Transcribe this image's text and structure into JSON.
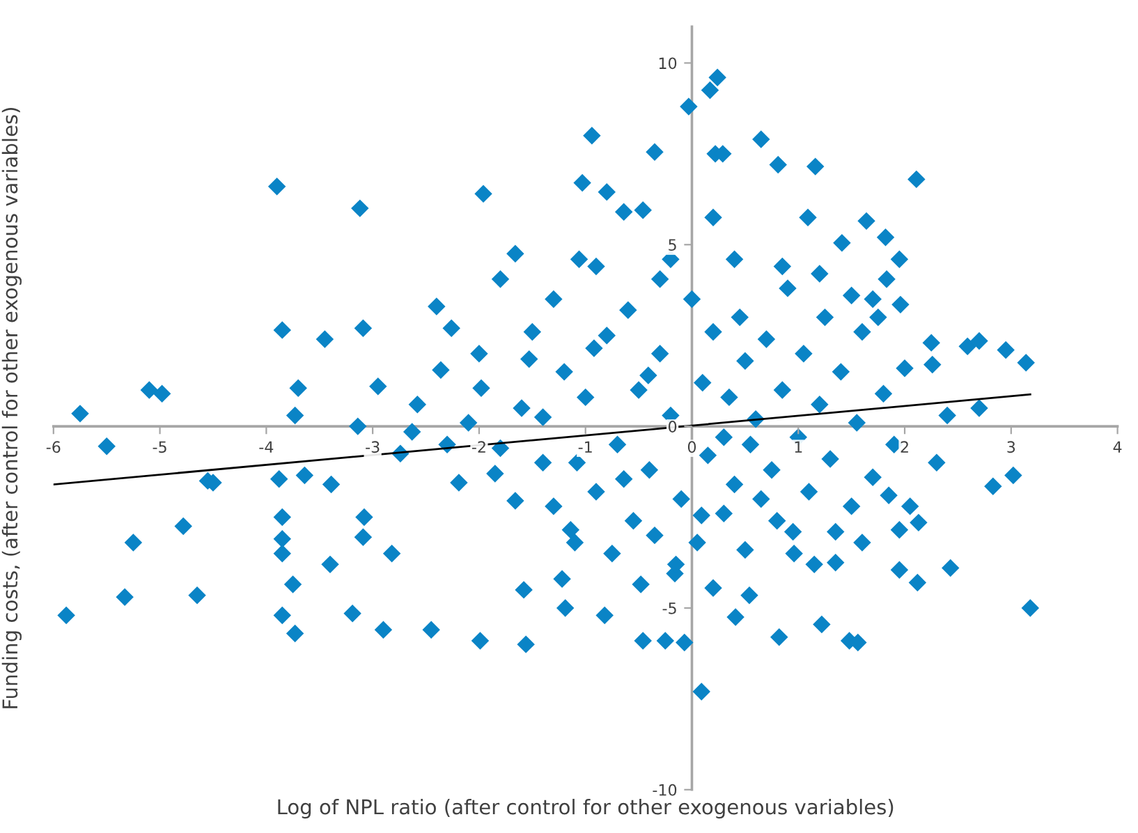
{
  "chart_data": {
    "type": "scatter",
    "xlabel": "Log of NPL ratio (after control for other exogenous variables)",
    "ylabel": "Funding costs, (after control for other exogenous variables)",
    "xlim": [
      -6,
      4
    ],
    "ylim": [
      -10,
      11
    ],
    "xticks": [
      -6,
      -5,
      -4,
      -3,
      -2,
      -1,
      0,
      1,
      2,
      3,
      4
    ],
    "yticks": [
      -10,
      -5,
      0,
      5,
      10
    ],
    "grid": false,
    "legend": false,
    "marker": "diamond",
    "series": [
      {
        "color": "#0a84c6",
        "x": [
          -5.75,
          -5.5,
          -5.1,
          -4.98,
          -5.88,
          -5.33,
          -5.25,
          -4.78,
          -4.65,
          -4.55,
          -4.5,
          -3.9,
          -3.85,
          -3.88,
          -3.85,
          -3.85,
          -3.85,
          -3.75,
          -3.85,
          -3.73,
          -3.73,
          -3.7,
          -3.64,
          -3.45,
          -3.39,
          -3.4,
          -3.12,
          -3.09,
          -3.08,
          -3.19,
          -3.14,
          -3.09,
          -2.95,
          -2.9,
          -2.82,
          -2.74,
          -2.63,
          -2.58,
          -2.45,
          -2.4,
          -2.36,
          -2.26,
          -2.19,
          -1.99,
          -1.96,
          -1.98,
          -1.85,
          -1.8,
          -1.66,
          -1.58,
          -1.56,
          -1.53,
          -1.66,
          -1.4,
          -1.3,
          -1.22,
          -1.19,
          -1.14,
          -1.06,
          -1.03,
          -0.94,
          -1.08,
          -0.82,
          -0.92,
          -0.8,
          -0.64,
          -0.64,
          -0.46,
          -0.35,
          -0.41,
          -0.48,
          -0.46,
          -0.25,
          -0.3,
          -0.03,
          0.09,
          0.17,
          0.24,
          0.22,
          0.29,
          0.2,
          0.65,
          0.81,
          1.16,
          1.09,
          2.11,
          1.82,
          1.64,
          1.41,
          1.95,
          1.83,
          1.96,
          1.7,
          2.25,
          2.59,
          2.7,
          2.95,
          3.14,
          2.26,
          2.7,
          3.02,
          2.83,
          3.18,
          2.43,
          2.12,
          1.95,
          2.13,
          1.95,
          1.48,
          1.56,
          1.22,
          0.82,
          0.54,
          0.41,
          -0.07,
          -0.16,
          1.35,
          0.96,
          0.2,
          0.09,
          -1.2,
          -1.0,
          -0.8,
          -0.7,
          -0.6,
          -0.5,
          -0.4,
          -0.3,
          -0.2,
          -0.1,
          0.0,
          0.1,
          0.15,
          0.2,
          0.3,
          0.35,
          0.4,
          0.45,
          0.5,
          0.55,
          0.6,
          0.7,
          0.75,
          0.8,
          0.85,
          0.9,
          1.0,
          1.05,
          1.1,
          1.2,
          1.25,
          1.3,
          1.4,
          1.5,
          1.55,
          1.6,
          1.7,
          1.8,
          1.9,
          2.0,
          -1.4,
          -1.3,
          -1.1,
          -0.9,
          -0.75,
          -0.55,
          -0.35,
          -0.15,
          0.05,
          0.3,
          0.5,
          0.65,
          0.95,
          1.15,
          1.35,
          1.6,
          1.85,
          2.05,
          2.3,
          2.4,
          -1.6,
          -1.8,
          -2.1,
          -2.3,
          -1.5,
          -2.0,
          -0.9,
          -0.2,
          0.4,
          0.85,
          1.2,
          1.5,
          1.75
        ],
        "values": [
          0.35,
          -0.55,
          1.0,
          0.9,
          -5.2,
          -4.7,
          -3.2,
          -2.75,
          -4.65,
          -1.5,
          -1.55,
          6.6,
          2.65,
          -1.45,
          -2.5,
          -3.1,
          -3.5,
          -4.35,
          -5.2,
          -5.7,
          0.3,
          1.05,
          -1.35,
          2.4,
          -1.6,
          -3.8,
          6.0,
          2.7,
          -2.5,
          -5.15,
          0.0,
          -3.05,
          1.1,
          -5.6,
          -3.5,
          -0.75,
          -0.15,
          0.6,
          -5.6,
          3.3,
          1.55,
          2.7,
          -1.55,
          -5.9,
          6.4,
          1.05,
          -1.3,
          4.05,
          4.75,
          -4.5,
          -6.0,
          1.85,
          -2.05,
          0.25,
          3.5,
          -4.2,
          -5.0,
          -2.85,
          4.6,
          6.7,
          8.0,
          -1.0,
          -5.2,
          2.15,
          6.45,
          -1.45,
          5.9,
          5.95,
          7.55,
          1.4,
          -4.35,
          -5.9,
          -5.9,
          4.05,
          8.8,
          -7.3,
          9.25,
          9.6,
          7.5,
          7.5,
          5.75,
          7.9,
          7.2,
          7.15,
          5.75,
          6.8,
          5.2,
          5.65,
          5.05,
          4.6,
          4.05,
          3.35,
          3.5,
          2.3,
          2.2,
          2.35,
          2.1,
          1.75,
          1.7,
          0.5,
          -1.35,
          -1.65,
          -5.0,
          -3.9,
          -4.3,
          -3.95,
          -2.65,
          -2.85,
          -5.9,
          -5.95,
          -5.45,
          -5.8,
          -4.65,
          -5.25,
          -5.95,
          -4.05,
          -3.75,
          -3.5,
          -4.45,
          -2.45,
          1.5,
          0.8,
          2.5,
          -0.5,
          3.2,
          1.0,
          -1.2,
          2.0,
          0.3,
          -2.0,
          3.5,
          1.2,
          -0.8,
          2.6,
          -0.3,
          0.8,
          -1.6,
          3.0,
          1.8,
          -0.5,
          0.2,
          2.4,
          -1.2,
          -2.6,
          1.0,
          3.8,
          -0.3,
          2.0,
          -1.8,
          0.6,
          3.0,
          -0.9,
          1.5,
          -2.2,
          0.1,
          2.6,
          -1.4,
          0.9,
          -0.5,
          1.6,
          -1.0,
          -2.2,
          -3.2,
          -1.8,
          -3.5,
          -2.6,
          -3.0,
          -3.8,
          -3.2,
          -2.4,
          -3.4,
          -2.0,
          -2.9,
          -3.8,
          -2.9,
          -3.2,
          -1.9,
          -2.2,
          -1.0,
          0.3,
          0.5,
          -0.6,
          0.1,
          -0.5,
          2.6,
          2.0,
          4.4,
          4.6,
          4.6,
          4.4,
          4.2,
          3.6,
          3.0
        ]
      },
      {
        "type": "line",
        "color": "#000000",
        "marker": "none",
        "line_style": "solid",
        "x": [
          -6,
          3.18
        ],
        "values": [
          -1.6,
          0.88
        ]
      }
    ]
  }
}
